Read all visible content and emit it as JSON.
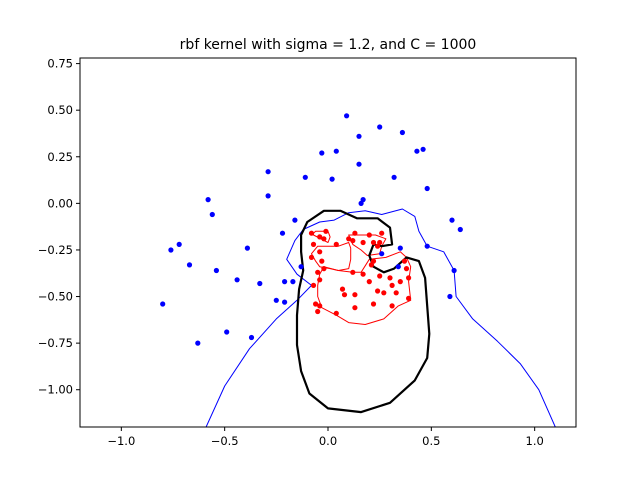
{
  "chart_data": {
    "type": "scatter",
    "title": "rbf kernel with sigma = 1.2, and C = 1000",
    "xlabel": "",
    "ylabel": "",
    "xlim": [
      -1.2,
      1.2
    ],
    "ylim": [
      -1.2,
      0.78
    ],
    "xticks": [
      -1.0,
      -0.5,
      0.0,
      0.5,
      1.0
    ],
    "xtick_labels": [
      "−1.0",
      "−0.5",
      "0.0",
      "0.5",
      "1.0"
    ],
    "yticks": [
      0.75,
      0.5,
      0.25,
      0.0,
      -0.25,
      -0.5,
      -0.75,
      -1.0
    ],
    "ytick_labels": [
      "0.75",
      "0.50",
      "0.25",
      "0.00",
      "−0.25",
      "−0.50",
      "−0.75",
      "−1.00"
    ],
    "grid": false,
    "colors": {
      "class_pos": "#0000ff",
      "class_neg": "#ff0000",
      "boundary": "#000000"
    },
    "series": [
      {
        "color": "#0000ff",
        "points": [
          [
            0.09,
            0.47
          ],
          [
            0.25,
            0.41
          ],
          [
            0.36,
            0.38
          ],
          [
            0.15,
            0.36
          ],
          [
            0.04,
            0.28
          ],
          [
            -0.03,
            0.27
          ],
          [
            0.43,
            0.28
          ],
          [
            0.46,
            0.29
          ],
          [
            0.15,
            0.21
          ],
          [
            -0.29,
            0.17
          ],
          [
            -0.11,
            0.14
          ],
          [
            0.32,
            0.14
          ],
          [
            0.02,
            0.13
          ],
          [
            0.48,
            0.08
          ],
          [
            0.17,
            0.02
          ],
          [
            0.16,
            0.0
          ],
          [
            -0.29,
            0.04
          ],
          [
            -0.58,
            0.02
          ],
          [
            -0.56,
            -0.06
          ],
          [
            -0.16,
            -0.09
          ],
          [
            0.6,
            -0.09
          ],
          [
            0.64,
            -0.14
          ],
          [
            -0.22,
            -0.16
          ],
          [
            -0.39,
            -0.24
          ],
          [
            -0.72,
            -0.22
          ],
          [
            -0.76,
            -0.25
          ],
          [
            0.35,
            -0.24
          ],
          [
            0.48,
            -0.23
          ],
          [
            0.26,
            -0.27
          ],
          [
            -0.67,
            -0.33
          ],
          [
            -0.13,
            -0.34
          ],
          [
            -0.54,
            -0.36
          ],
          [
            0.34,
            -0.34
          ],
          [
            0.61,
            -0.36
          ],
          [
            -0.44,
            -0.41
          ],
          [
            -0.21,
            -0.42
          ],
          [
            -0.17,
            -0.42
          ],
          [
            -0.33,
            -0.43
          ],
          [
            -0.25,
            -0.52
          ],
          [
            -0.21,
            -0.53
          ],
          [
            -0.8,
            -0.54
          ],
          [
            0.59,
            -0.5
          ],
          [
            -0.49,
            -0.69
          ],
          [
            -0.37,
            -0.72
          ],
          [
            -0.63,
            -0.75
          ]
        ]
      },
      {
        "color": "#ff0000",
        "points": [
          [
            -0.08,
            -0.16
          ],
          [
            -0.01,
            -0.15
          ],
          [
            0.13,
            -0.16
          ],
          [
            0.2,
            -0.17
          ],
          [
            0.26,
            -0.16
          ],
          [
            -0.04,
            -0.18
          ],
          [
            -0.02,
            -0.19
          ],
          [
            0.1,
            -0.19
          ],
          [
            0.12,
            -0.2
          ],
          [
            0.17,
            -0.21
          ],
          [
            0.22,
            -0.21
          ],
          [
            0.25,
            -0.21
          ],
          [
            -0.07,
            -0.22
          ],
          [
            0.04,
            -0.22
          ],
          [
            0.24,
            -0.23
          ],
          [
            -0.04,
            -0.26
          ],
          [
            -0.08,
            -0.29
          ],
          [
            -0.03,
            -0.31
          ],
          [
            0.22,
            -0.31
          ],
          [
            0.37,
            -0.31
          ],
          [
            0.21,
            -0.33
          ],
          [
            -0.02,
            -0.35
          ],
          [
            0.38,
            -0.35
          ],
          [
            -0.05,
            -0.37
          ],
          [
            0.12,
            -0.37
          ],
          [
            0.17,
            -0.38
          ],
          [
            0.25,
            -0.39
          ],
          [
            0.3,
            -0.4
          ],
          [
            0.39,
            -0.4
          ],
          [
            -0.04,
            -0.41
          ],
          [
            0.2,
            -0.42
          ],
          [
            0.35,
            -0.42
          ],
          [
            0.31,
            -0.44
          ],
          [
            -0.07,
            -0.44
          ],
          [
            0.07,
            -0.46
          ],
          [
            0.24,
            -0.47
          ],
          [
            0.27,
            -0.48
          ],
          [
            0.33,
            -0.48
          ],
          [
            0.13,
            -0.49
          ],
          [
            0.08,
            -0.49
          ],
          [
            0.39,
            -0.51
          ],
          [
            -0.06,
            -0.54
          ],
          [
            -0.04,
            -0.55
          ],
          [
            0.22,
            -0.54
          ],
          [
            0.31,
            -0.55
          ],
          [
            0.13,
            -0.56
          ],
          [
            -0.05,
            -0.58
          ],
          [
            0.04,
            -0.59
          ]
        ]
      }
    ],
    "contours": [
      {
        "color": "#0000ff",
        "width": 1,
        "segments": [
          [
            [
              -0.59,
              -1.2
            ],
            [
              -0.5,
              -0.98
            ],
            [
              -0.38,
              -0.78
            ],
            [
              -0.25,
              -0.62
            ],
            [
              -0.15,
              -0.52
            ],
            [
              -0.08,
              -0.44
            ],
            [
              -0.15,
              -0.38
            ],
            [
              -0.2,
              -0.3
            ],
            [
              -0.16,
              -0.2
            ],
            [
              -0.12,
              -0.14
            ],
            [
              -0.04,
              -0.1
            ],
            [
              0.03,
              -0.09
            ],
            [
              0.1,
              -0.05
            ],
            [
              0.18,
              -0.04
            ],
            [
              0.26,
              -0.06
            ],
            [
              0.36,
              -0.03
            ],
            [
              0.42,
              -0.07
            ],
            [
              0.44,
              -0.15
            ],
            [
              0.48,
              -0.23
            ],
            [
              0.56,
              -0.26
            ],
            [
              0.61,
              -0.36
            ],
            [
              0.62,
              -0.5
            ],
            [
              0.7,
              -0.62
            ],
            [
              0.82,
              -0.74
            ],
            [
              0.93,
              -0.86
            ],
            [
              1.02,
              -1.0
            ],
            [
              1.1,
              -1.2
            ]
          ]
        ]
      },
      {
        "color": "#ff0000",
        "width": 1,
        "segments": [
          [
            [
              -0.07,
              -0.16
            ],
            [
              -0.06,
              -0.15
            ],
            [
              0.0,
              -0.15
            ],
            [
              0.01,
              -0.18
            ],
            [
              0.0,
              -0.21
            ],
            [
              -0.07,
              -0.17
            ],
            [
              -0.07,
              -0.16
            ]
          ],
          [
            [
              0.1,
              -0.17
            ],
            [
              0.23,
              -0.17
            ],
            [
              0.28,
              -0.19
            ],
            [
              0.26,
              -0.23
            ],
            [
              0.25,
              -0.27
            ],
            [
              0.19,
              -0.28
            ],
            [
              0.16,
              -0.25
            ],
            [
              0.12,
              -0.22
            ],
            [
              0.1,
              -0.17
            ]
          ],
          [
            [
              -0.08,
              -0.27
            ],
            [
              -0.05,
              -0.23
            ],
            [
              0.0,
              -0.23
            ],
            [
              0.05,
              -0.23
            ],
            [
              0.1,
              -0.21
            ],
            [
              0.11,
              -0.24
            ],
            [
              0.11,
              -0.3
            ],
            [
              0.1,
              -0.35
            ],
            [
              0.05,
              -0.36
            ],
            [
              0.01,
              -0.35
            ],
            [
              -0.04,
              -0.34
            ],
            [
              -0.06,
              -0.31
            ],
            [
              -0.08,
              -0.27
            ]
          ],
          [
            [
              0.16,
              -0.37
            ],
            [
              0.2,
              -0.3
            ],
            [
              0.28,
              -0.29
            ],
            [
              0.35,
              -0.26
            ],
            [
              0.38,
              -0.29
            ],
            [
              0.4,
              -0.34
            ],
            [
              0.39,
              -0.42
            ],
            [
              0.4,
              -0.52
            ],
            [
              0.34,
              -0.55
            ],
            [
              0.27,
              -0.62
            ],
            [
              0.18,
              -0.65
            ],
            [
              0.1,
              -0.64
            ],
            [
              0.04,
              -0.6
            ],
            [
              -0.03,
              -0.56
            ],
            [
              -0.05,
              -0.5
            ],
            [
              -0.05,
              -0.44
            ],
            [
              -0.04,
              -0.38
            ],
            [
              -0.02,
              -0.34
            ],
            [
              0.05,
              -0.36
            ],
            [
              0.12,
              -0.37
            ],
            [
              0.16,
              -0.37
            ]
          ]
        ]
      },
      {
        "color": "#000000",
        "width": 2.2,
        "segments": [
          [
            [
              -0.1,
              -0.1
            ],
            [
              -0.02,
              -0.04
            ],
            [
              0.06,
              -0.04
            ],
            [
              0.14,
              -0.08
            ],
            [
              0.24,
              -0.08
            ],
            [
              0.3,
              -0.13
            ],
            [
              0.31,
              -0.22
            ],
            [
              0.26,
              -0.23
            ],
            [
              0.22,
              -0.22
            ],
            [
              0.2,
              -0.28
            ],
            [
              0.22,
              -0.34
            ],
            [
              0.27,
              -0.37
            ],
            [
              0.32,
              -0.35
            ],
            [
              0.38,
              -0.29
            ],
            [
              0.44,
              -0.31
            ],
            [
              0.47,
              -0.4
            ],
            [
              0.48,
              -0.55
            ],
            [
              0.49,
              -0.7
            ],
            [
              0.48,
              -0.83
            ],
            [
              0.42,
              -0.95
            ],
            [
              0.3,
              -1.07
            ],
            [
              0.16,
              -1.12
            ],
            [
              0.0,
              -1.1
            ],
            [
              -0.09,
              -1.02
            ],
            [
              -0.13,
              -0.9
            ],
            [
              -0.15,
              -0.76
            ],
            [
              -0.15,
              -0.6
            ],
            [
              -0.14,
              -0.46
            ],
            [
              -0.12,
              -0.36
            ],
            [
              -0.13,
              -0.26
            ],
            [
              -0.13,
              -0.17
            ],
            [
              -0.1,
              -0.1
            ]
          ]
        ]
      }
    ]
  }
}
